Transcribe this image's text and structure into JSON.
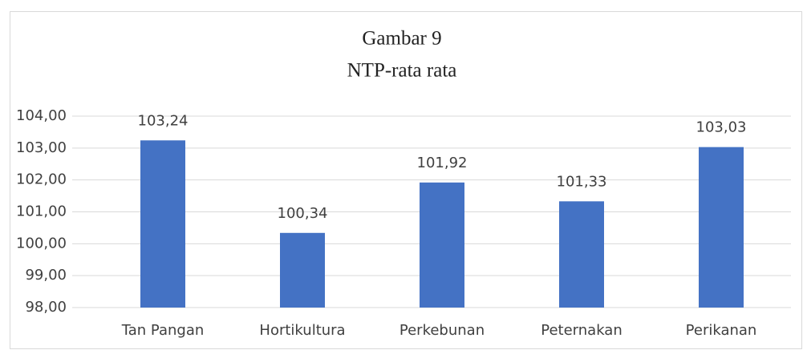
{
  "chart_data": {
    "type": "bar",
    "title": "Gambar 9",
    "subtitle": "NTP-rata rata",
    "categories": [
      "Tan Pangan",
      "Hortikultura",
      "Perkebunan",
      "Peternakan",
      "Perikanan"
    ],
    "values": [
      103.24,
      100.34,
      101.92,
      101.33,
      103.03
    ],
    "value_labels": [
      "103,24",
      "100,34",
      "101,92",
      "101,33",
      "103,03"
    ],
    "color": "#4472c4",
    "ylim": [
      98,
      104
    ],
    "yticks": [
      {
        "value": 98,
        "label": "98,00"
      },
      {
        "value": 99,
        "label": "99,00"
      },
      {
        "value": 100,
        "label": "100,00"
      },
      {
        "value": 101,
        "label": "101,00"
      },
      {
        "value": 102,
        "label": "102,00"
      },
      {
        "value": 103,
        "label": "103,00"
      },
      {
        "value": 104,
        "label": "104,00"
      }
    ],
    "grid": true
  }
}
